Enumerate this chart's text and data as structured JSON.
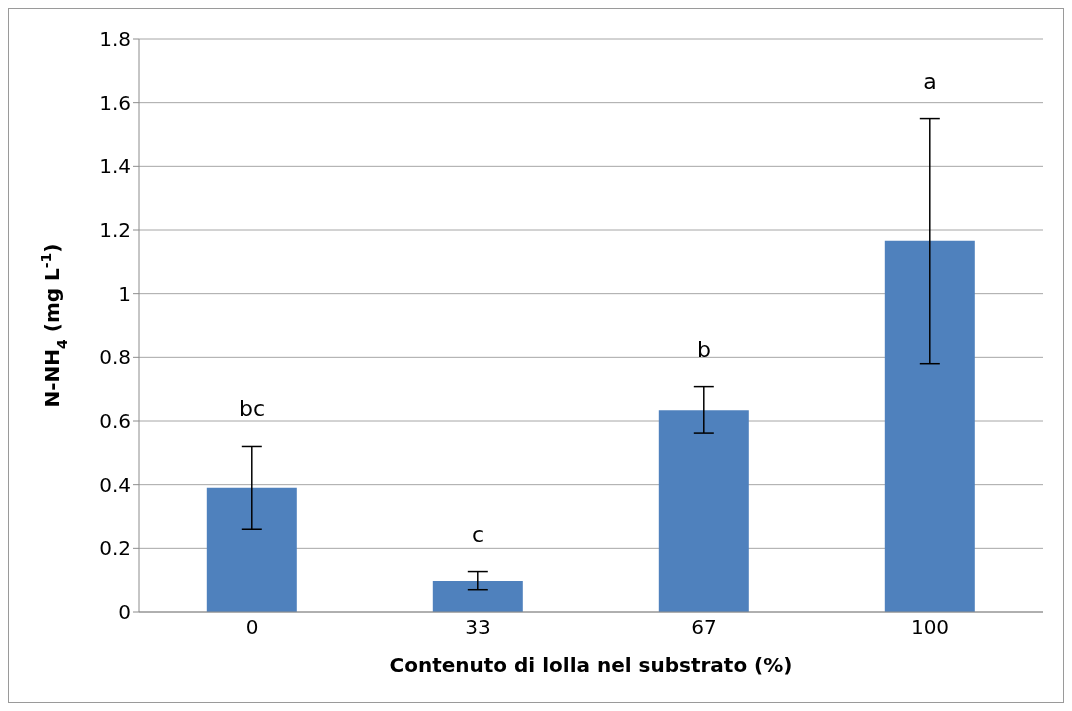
{
  "chart_data": {
    "type": "bar",
    "xlabel": "Contenuto di lolla nel substrato (%)",
    "ylabel": "N-NH$_{4}$ (mg L$^{-1}$)",
    "categories": [
      "0",
      "33",
      "67",
      "100"
    ],
    "values": [
      0.39,
      0.097,
      0.634,
      1.166
    ],
    "errors": [
      [
        0.26,
        0.52
      ],
      [
        0.07,
        0.127
      ],
      [
        0.562,
        0.708
      ],
      [
        0.78,
        1.55
      ]
    ],
    "color": "#4f81bd",
    "ylim": [
      0,
      1.8
    ],
    "yticks": [
      0,
      0.2,
      0.4,
      0.6,
      0.8,
      1,
      1.2,
      1.4,
      1.6,
      1.8
    ],
    "grid": "y",
    "annotations": [
      "bc",
      "c",
      "b",
      "a"
    ]
  }
}
